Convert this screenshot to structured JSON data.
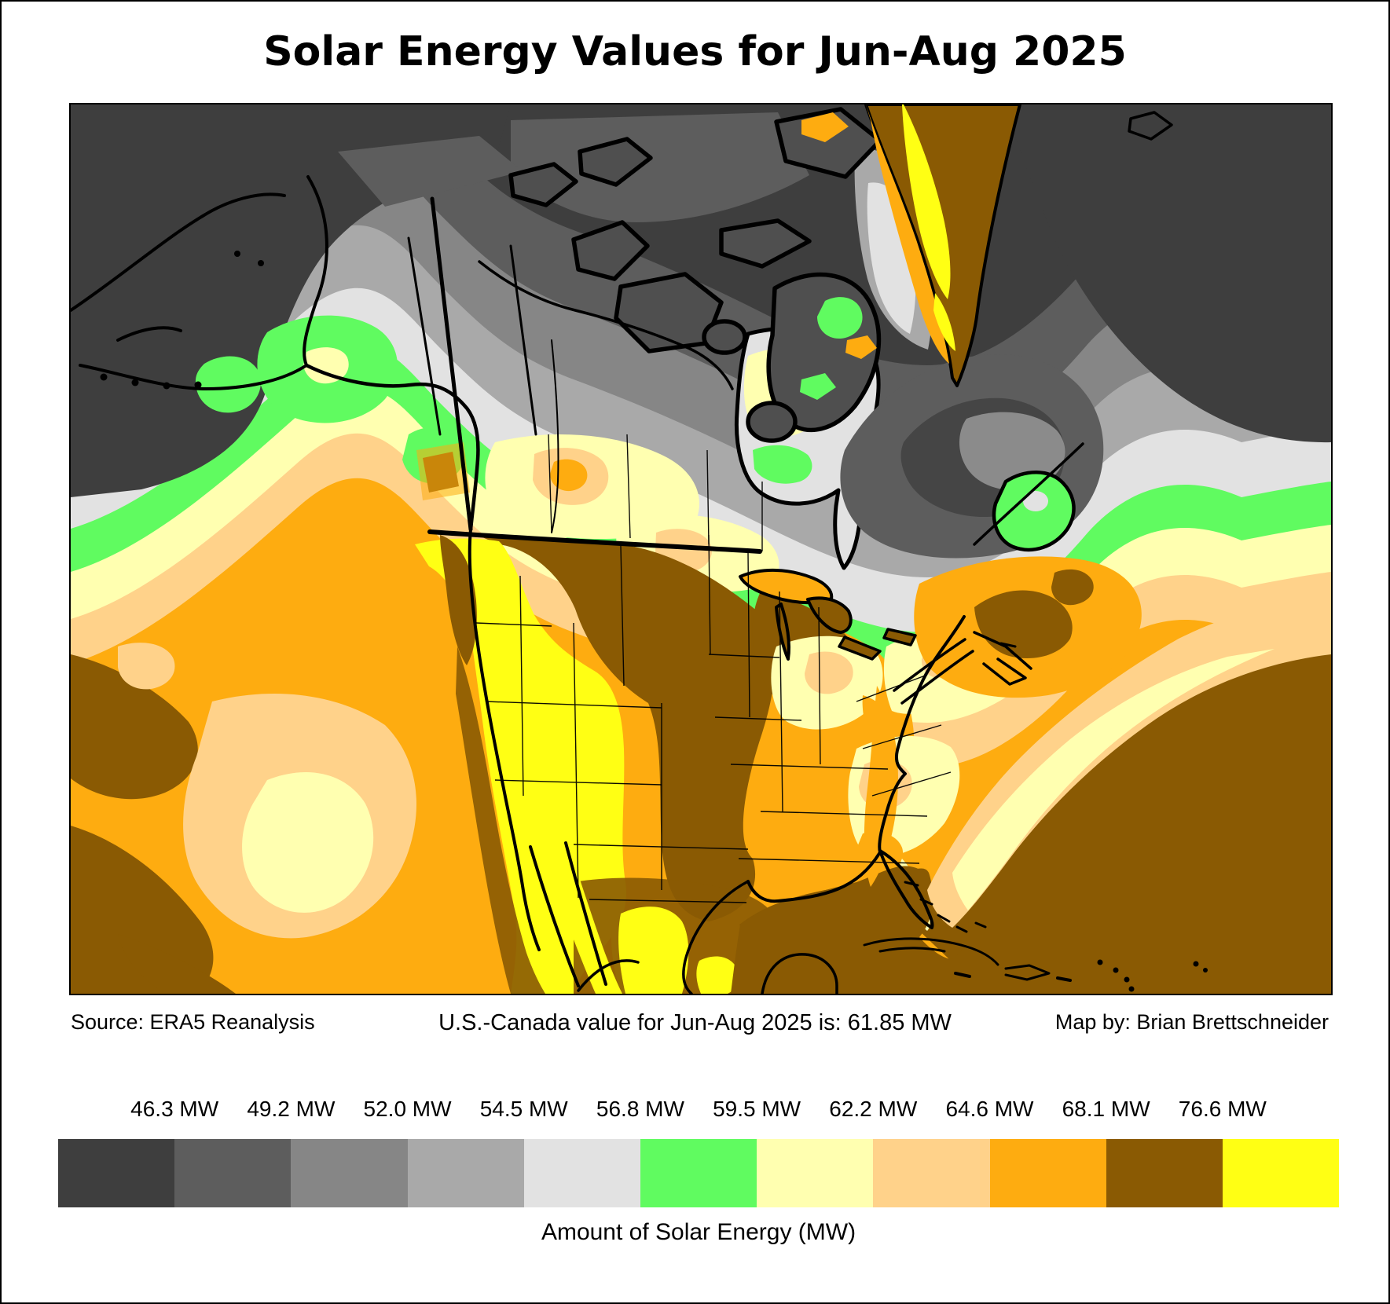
{
  "title": "Solar Energy Values for Jun-Aug 2025",
  "annotations": {
    "source": "Source: ERA5 Reanalysis",
    "summary": "U.S.-Canada value for Jun-Aug 2025 is: 61.85 MW",
    "credit": "Map by: Brian Brettschneider"
  },
  "legend": {
    "title": "Amount of Solar Energy (MW)",
    "tick_labels": [
      "46.3 MW",
      "49.2 MW",
      "52.0 MW",
      "54.5 MW",
      "56.8 MW",
      "59.5 MW",
      "62.2 MW",
      "64.6 MW",
      "68.1 MW",
      "76.6 MW"
    ],
    "colors": [
      "#3e3e3e",
      "#5d5d5d",
      "#868686",
      "#a9a9a9",
      "#e2e2e2",
      "#60fb60",
      "#ffffb0",
      "#ffd28a",
      "#feac10",
      "#8a5a03",
      "#ffff14"
    ]
  }
}
